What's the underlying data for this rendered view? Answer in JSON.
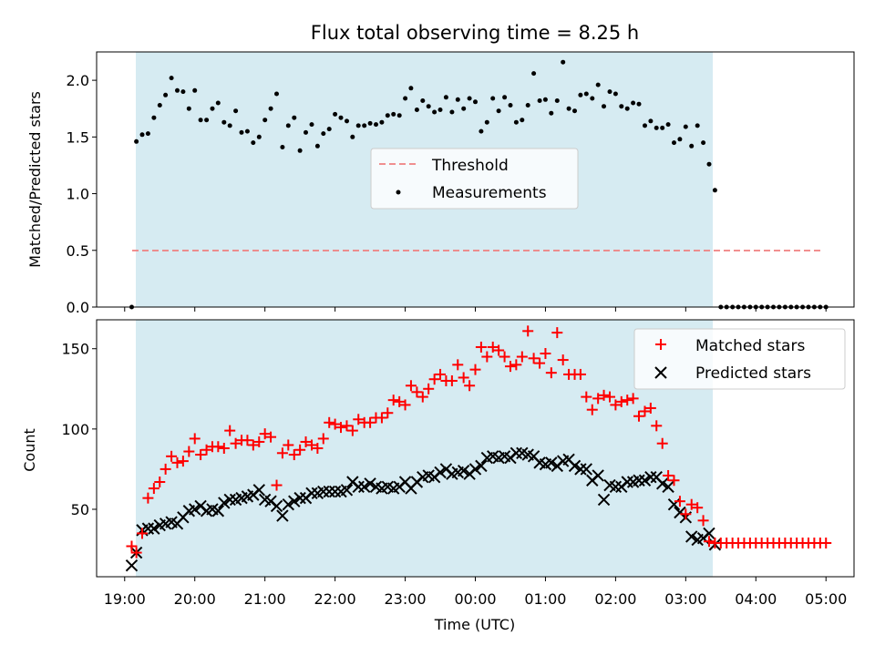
{
  "chart_data": [
    {
      "type": "scatter",
      "title": "Flux total observing time = 8.25 h",
      "xlabel": "",
      "ylabel": "Matched/Predicted stars",
      "xlim": [
        -0.4,
        10.4
      ],
      "ylim": [
        0,
        2.25
      ],
      "yticks": [
        0.0,
        0.5,
        1.0,
        1.5,
        2.0
      ],
      "ytick_labels": [
        "0.0",
        "0.5",
        "1.0",
        "1.5",
        "2.0"
      ],
      "observing_span_hours": [
        0.167,
        8.417
      ],
      "observing_span_color": "#add8e6",
      "threshold": {
        "name": "Threshold",
        "value": 0.5,
        "x": [
          0.1,
          10.0
        ],
        "color": "#f08080",
        "style": "dashed"
      },
      "legend": {
        "position": "center",
        "entries": [
          "Threshold",
          "Measurements"
        ]
      },
      "series": [
        {
          "name": "Measurements",
          "color": "#000000",
          "x": [
            0.1,
            0.167,
            0.25,
            0.333,
            0.417,
            0.5,
            0.583,
            0.667,
            0.75,
            0.833,
            0.917,
            1.0,
            1.083,
            1.167,
            1.25,
            1.333,
            1.417,
            1.5,
            1.583,
            1.667,
            1.75,
            1.833,
            1.917,
            2.0,
            2.083,
            2.167,
            2.25,
            2.333,
            2.417,
            2.5,
            2.583,
            2.667,
            2.75,
            2.833,
            2.917,
            3.0,
            3.083,
            3.167,
            3.25,
            3.333,
            3.417,
            3.5,
            3.583,
            3.667,
            3.75,
            3.833,
            3.917,
            4.0,
            4.083,
            4.167,
            4.25,
            4.333,
            4.417,
            4.5,
            4.583,
            4.667,
            4.75,
            4.833,
            4.917,
            5.0,
            5.083,
            5.167,
            5.25,
            5.333,
            5.417,
            5.5,
            5.583,
            5.667,
            5.75,
            5.833,
            5.917,
            6.0,
            6.083,
            6.167,
            6.25,
            6.333,
            6.417,
            6.5,
            6.583,
            6.667,
            6.75,
            6.833,
            6.917,
            7.0,
            7.083,
            7.167,
            7.25,
            7.333,
            7.417,
            7.5,
            7.583,
            7.667,
            7.75,
            7.833,
            7.917,
            8.0,
            8.083,
            8.167,
            8.25,
            8.333,
            8.417,
            8.5,
            8.583,
            8.667,
            8.75,
            8.833,
            8.917,
            9.0,
            9.083,
            9.167,
            9.25,
            9.333,
            9.417,
            9.5,
            9.583,
            9.667,
            9.75,
            9.833,
            9.917,
            10.0
          ],
          "y": [
            0.0,
            1.46,
            1.52,
            1.53,
            1.67,
            1.78,
            1.87,
            2.02,
            1.91,
            1.9,
            1.75,
            1.91,
            1.65,
            1.65,
            1.75,
            1.8,
            1.63,
            1.6,
            1.73,
            1.54,
            1.55,
            1.45,
            1.5,
            1.65,
            1.75,
            1.88,
            1.41,
            1.6,
            1.67,
            1.38,
            1.54,
            1.61,
            1.42,
            1.53,
            1.57,
            1.7,
            1.67,
            1.64,
            1.5,
            1.6,
            1.6,
            1.62,
            1.61,
            1.63,
            1.69,
            1.7,
            1.69,
            1.84,
            1.93,
            1.74,
            1.82,
            1.77,
            1.72,
            1.74,
            1.85,
            1.72,
            1.83,
            1.75,
            1.84,
            1.81,
            1.55,
            1.63,
            1.84,
            1.73,
            1.85,
            1.78,
            1.63,
            1.65,
            1.78,
            2.06,
            1.82,
            1.83,
            1.71,
            1.82,
            2.16,
            1.75,
            1.73,
            1.87,
            1.88,
            1.84,
            1.96,
            1.77,
            1.9,
            1.88,
            1.77,
            1.75,
            1.8,
            1.79,
            1.6,
            1.64,
            1.58,
            1.58,
            1.61,
            1.45,
            1.48,
            1.59,
            1.42,
            1.6,
            1.45,
            1.26,
            1.03,
            0.0,
            0.0,
            0.0,
            0.0,
            0.0,
            0.0,
            0.0,
            0.0,
            0.0,
            0.0,
            0.0,
            0.0,
            0.0,
            0.0,
            0.0,
            0.0,
            0.0,
            0.0,
            0.0
          ]
        }
      ]
    },
    {
      "type": "scatter",
      "title": "",
      "xlabel": "Time (UTC)",
      "ylabel": "Count",
      "xlim": [
        -0.4,
        10.4
      ],
      "ylim": [
        8,
        168
      ],
      "yticks": [
        50,
        100,
        150
      ],
      "ytick_labels": [
        "50",
        "100",
        "150"
      ],
      "xticks": [
        0,
        1,
        2,
        3,
        4,
        5,
        6,
        7,
        8,
        9,
        10
      ],
      "xtick_labels": [
        "19:00",
        "20:00",
        "21:00",
        "22:00",
        "23:00",
        "00:00",
        "01:00",
        "02:00",
        "03:00",
        "04:00",
        "05:00"
      ],
      "observing_span_hours": [
        0.167,
        8.417
      ],
      "observing_span_color": "#add8e6",
      "legend": {
        "position": "top-right",
        "entries": [
          "Matched stars",
          "Predicted stars"
        ]
      },
      "series": [
        {
          "name": "Matched stars",
          "marker": "plus",
          "color": "#ff0000",
          "x": [
            0.1,
            0.167,
            0.25,
            0.333,
            0.417,
            0.5,
            0.583,
            0.667,
            0.75,
            0.833,
            0.917,
            1.0,
            1.083,
            1.167,
            1.25,
            1.333,
            1.417,
            1.5,
            1.583,
            1.667,
            1.75,
            1.833,
            1.917,
            2.0,
            2.083,
            2.167,
            2.25,
            2.333,
            2.417,
            2.5,
            2.583,
            2.667,
            2.75,
            2.833,
            2.917,
            3.0,
            3.083,
            3.167,
            3.25,
            3.333,
            3.417,
            3.5,
            3.583,
            3.667,
            3.75,
            3.833,
            3.917,
            4.0,
            4.083,
            4.167,
            4.25,
            4.333,
            4.417,
            4.5,
            4.583,
            4.667,
            4.75,
            4.833,
            4.917,
            5.0,
            5.083,
            5.167,
            5.25,
            5.333,
            5.417,
            5.5,
            5.583,
            5.667,
            5.75,
            5.833,
            5.917,
            6.0,
            6.083,
            6.167,
            6.25,
            6.333,
            6.417,
            6.5,
            6.583,
            6.667,
            6.75,
            6.833,
            6.917,
            7.0,
            7.083,
            7.167,
            7.25,
            7.333,
            7.417,
            7.5,
            7.583,
            7.667,
            7.75,
            7.833,
            7.917,
            8.0,
            8.083,
            8.167,
            8.25,
            8.333,
            8.417,
            8.5,
            8.583,
            8.667,
            8.75,
            8.833,
            8.917,
            9.0,
            9.083,
            9.167,
            9.25,
            9.333,
            9.417,
            9.5,
            9.583,
            9.667,
            9.75,
            9.833,
            9.917,
            10.0
          ],
          "y": [
            27,
            23,
            35,
            57,
            63,
            67,
            75,
            83,
            79,
            80,
            86,
            94,
            84,
            87,
            89,
            89,
            88,
            99,
            91,
            93,
            93,
            90,
            92,
            97,
            95,
            65,
            85,
            90,
            84,
            87,
            92,
            90,
            88,
            94,
            104,
            103,
            101,
            102,
            99,
            106,
            104,
            104,
            107,
            107,
            110,
            118,
            117,
            115,
            127,
            123,
            120,
            125,
            131,
            134,
            130,
            130,
            140,
            132,
            127,
            137,
            151,
            145,
            151,
            149,
            145,
            139,
            140,
            145,
            161,
            144,
            141,
            147,
            135,
            160,
            143,
            134,
            134,
            134,
            120,
            112,
            119,
            121,
            120,
            115,
            117,
            118,
            119,
            108,
            111,
            113,
            102,
            91,
            71,
            68,
            55,
            47,
            53,
            51,
            43,
            30,
            29,
            29,
            29,
            29,
            29,
            29,
            29,
            29,
            29,
            29,
            29,
            29,
            29,
            29,
            29,
            29,
            29,
            29,
            29,
            29
          ]
        },
        {
          "name": "Predicted stars",
          "marker": "x",
          "color": "#000000",
          "x": [
            0.1,
            0.167,
            0.25,
            0.333,
            0.417,
            0.5,
            0.583,
            0.667,
            0.75,
            0.833,
            0.917,
            1.0,
            1.083,
            1.167,
            1.25,
            1.333,
            1.417,
            1.5,
            1.583,
            1.667,
            1.75,
            1.833,
            1.917,
            2.0,
            2.083,
            2.167,
            2.25,
            2.333,
            2.417,
            2.5,
            2.583,
            2.667,
            2.75,
            2.833,
            2.917,
            3.0,
            3.083,
            3.167,
            3.25,
            3.333,
            3.417,
            3.5,
            3.583,
            3.667,
            3.75,
            3.833,
            3.917,
            4.0,
            4.083,
            4.167,
            4.25,
            4.333,
            4.417,
            4.5,
            4.583,
            4.667,
            4.75,
            4.833,
            4.917,
            5.0,
            5.083,
            5.167,
            5.25,
            5.333,
            5.417,
            5.5,
            5.583,
            5.667,
            5.75,
            5.833,
            5.917,
            6.0,
            6.083,
            6.167,
            6.25,
            6.333,
            6.417,
            6.5,
            6.583,
            6.667,
            6.75,
            6.833,
            6.917,
            7.0,
            7.083,
            7.167,
            7.25,
            7.333,
            7.417,
            7.5,
            7.583,
            7.667,
            7.75,
            7.833,
            7.917,
            8.0,
            8.083,
            8.167,
            8.25,
            8.333,
            8.417
          ],
          "y": [
            15,
            23,
            37,
            38,
            38,
            40,
            41,
            42,
            41,
            45,
            49,
            50,
            52,
            49,
            50,
            49,
            54,
            56,
            56,
            57,
            58,
            59,
            62,
            56,
            55,
            52,
            46,
            53,
            55,
            57,
            57,
            60,
            60,
            61,
            61,
            61,
            61,
            62,
            67,
            64,
            64,
            66,
            64,
            63,
            64,
            63,
            64,
            67,
            63,
            67,
            70,
            71,
            70,
            73,
            75,
            72,
            73,
            74,
            72,
            75,
            77,
            82,
            83,
            82,
            83,
            82,
            85,
            85,
            84,
            83,
            79,
            78,
            79,
            77,
            80,
            81,
            77,
            75,
            75,
            68,
            71,
            56,
            65,
            64,
            64,
            67,
            67,
            68,
            68,
            70,
            70,
            66,
            64,
            53,
            48,
            45,
            33,
            31,
            32,
            35,
            28
          ]
        }
      ]
    }
  ]
}
